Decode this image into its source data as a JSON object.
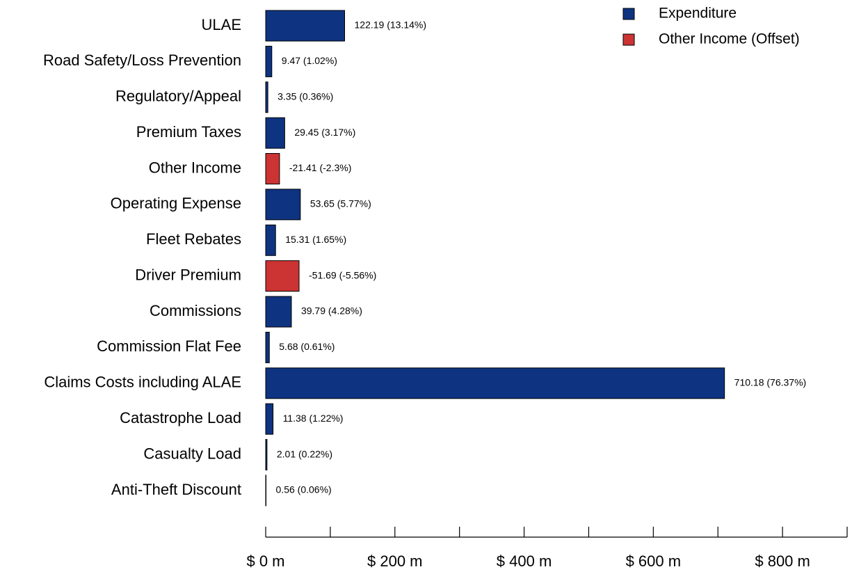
{
  "chart_data": {
    "type": "bar",
    "orientation": "horizontal",
    "categories": [
      "ULAE",
      "Road Safety/Loss Prevention",
      "Regulatory/Appeal",
      "Premium Taxes",
      "Other Income",
      "Operating Expense",
      "Fleet Rebates",
      "Driver Premium",
      "Commissions",
      "Commission Flat Fee",
      "Claims Costs including ALAE",
      "Catastrophe Load",
      "Casualty Load",
      "Anti-Theft Discount"
    ],
    "series": [
      {
        "name": "Expenditure",
        "color": "#0e3381",
        "values": [
          122.19,
          9.47,
          3.35,
          29.45,
          null,
          53.65,
          15.31,
          null,
          39.79,
          5.68,
          710.18,
          11.38,
          2.01,
          0.56
        ],
        "value_labels": [
          "122.19 (13.14%)",
          "9.47 (1.02%)",
          "3.35 (0.36%)",
          "29.45 (3.17%)",
          null,
          "53.65 (5.77%)",
          "15.31 (1.65%)",
          null,
          "39.79 (4.28%)",
          "5.68 (0.61%)",
          "710.18 (76.37%)",
          "11.38 (1.22%)",
          "2.01 (0.22%)",
          "0.56 (0.06%)"
        ]
      },
      {
        "name": "Other Income (Offset)",
        "color": "#cc3333",
        "values": [
          null,
          null,
          null,
          null,
          -21.41,
          null,
          null,
          -51.69,
          null,
          null,
          null,
          null,
          null,
          null
        ],
        "value_labels": [
          null,
          null,
          null,
          null,
          "-21.41 (-2.3%)",
          null,
          null,
          "-51.69 (-5.56%)",
          null,
          null,
          null,
          null,
          null,
          null
        ]
      }
    ],
    "xlim": [
      0,
      900
    ],
    "xticks": [
      {
        "value": 0,
        "label": "$ 0 m"
      },
      {
        "value": 200,
        "label": "$ 200 m"
      },
      {
        "value": 400,
        "label": "$ 400 m"
      },
      {
        "value": 600,
        "label": "$ 600 m"
      },
      {
        "value": 800,
        "label": "$ 800 m"
      }
    ],
    "xminorticks": [
      100,
      300,
      500,
      700,
      900
    ],
    "legend": "top-right"
  }
}
